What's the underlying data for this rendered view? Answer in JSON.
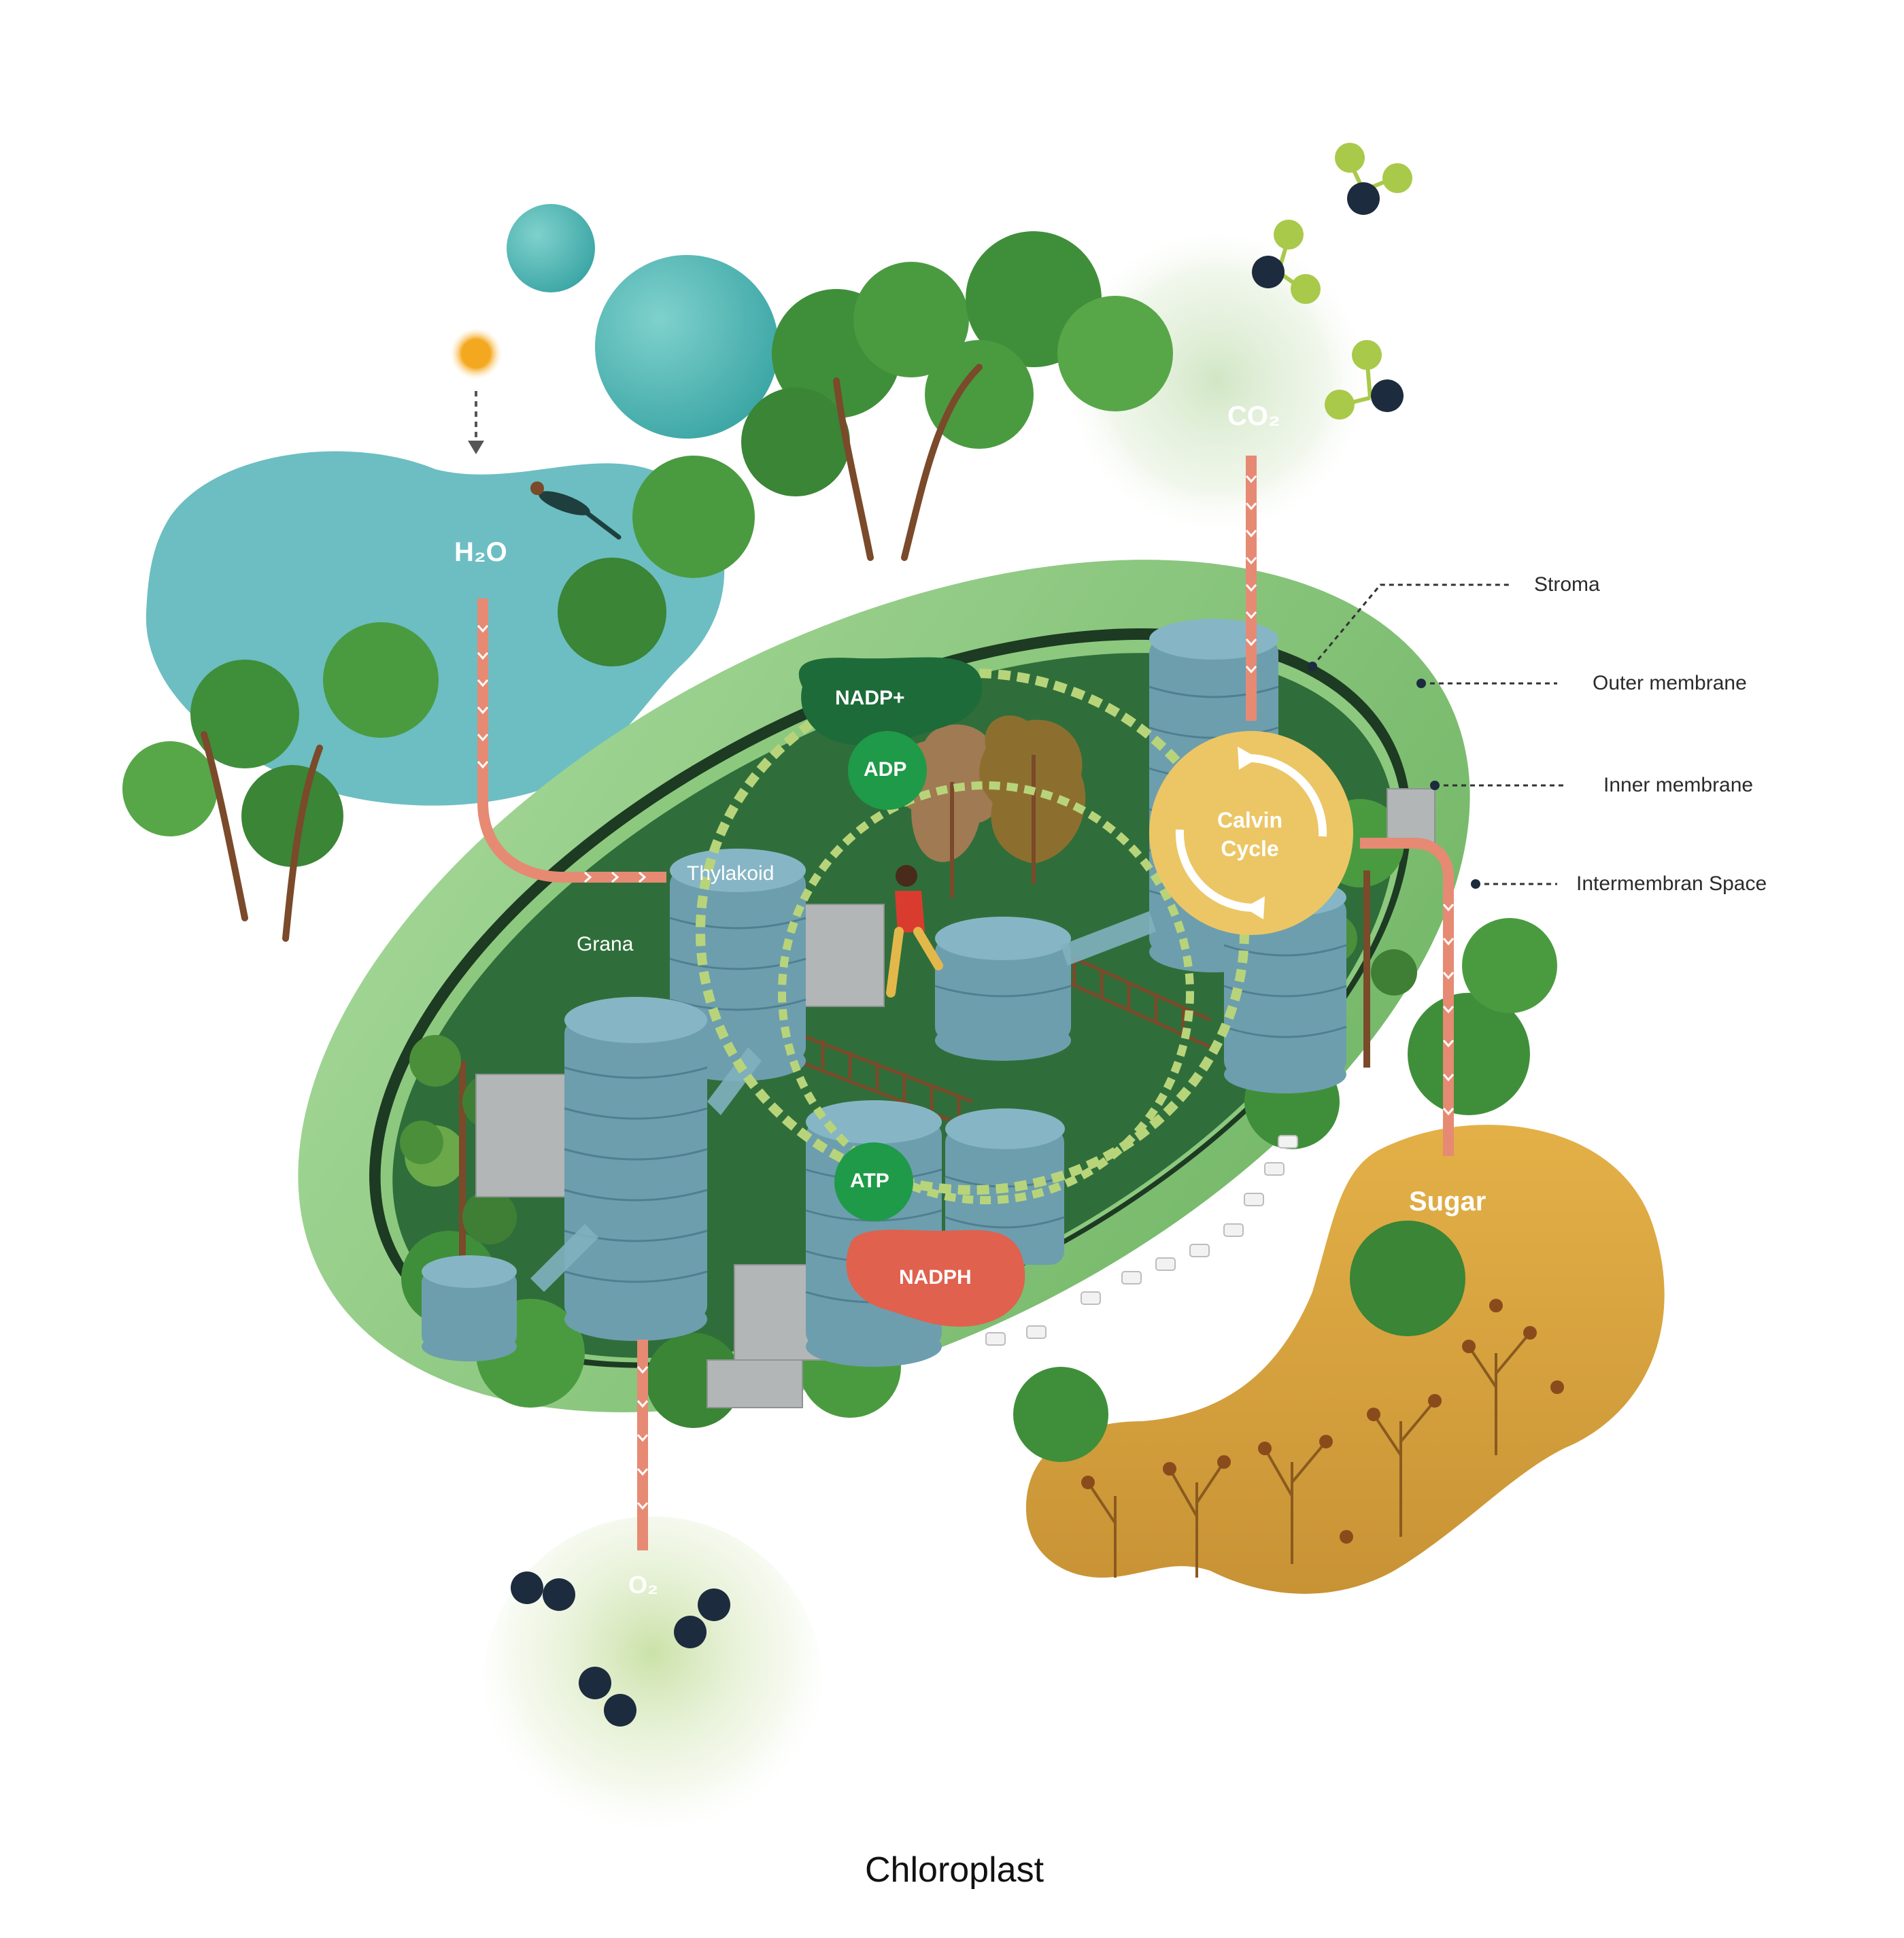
{
  "diagram": {
    "caption": "Chloroplast",
    "inputs": {
      "water": "H₂O",
      "carbon_dioxide": "CO₂"
    },
    "outputs": {
      "oxygen": "O₂",
      "sugar": "Sugar"
    },
    "molecules": {
      "nadp_plus": "NADP+",
      "adp": "ADP",
      "atp": "ATP",
      "nadph": "NADPH",
      "calvin_line1": "Calvin",
      "calvin_line2": "Cycle"
    },
    "structures": {
      "thylakoid": "Thylakoid",
      "grana": "Grana"
    },
    "callouts": {
      "stroma": "Stroma",
      "outer_membrane": "Outer membrane",
      "inner_membrane": "Inner membrane",
      "intermembrane_space": "Intermembran Space"
    },
    "colors": {
      "outer_membrane": "#8cc97e",
      "inner_space": "#2f6e3a",
      "thylakoid_disc": "#7fb0bf",
      "water_pool": "#5fb8bd",
      "sugar_blob": "#d49a2c",
      "calvin_cycle": "#ecc665",
      "nadph": "#e0614e",
      "energy_carrier": "#1f9a48",
      "nadp_plus": "#1e6b3a",
      "flow_arrow": "#e68a74",
      "foliage": "#3f8f3a",
      "sun": "#f4a81f",
      "molecule_dark": "#1d2b3e",
      "molecule_light": "#a9c94a"
    }
  }
}
